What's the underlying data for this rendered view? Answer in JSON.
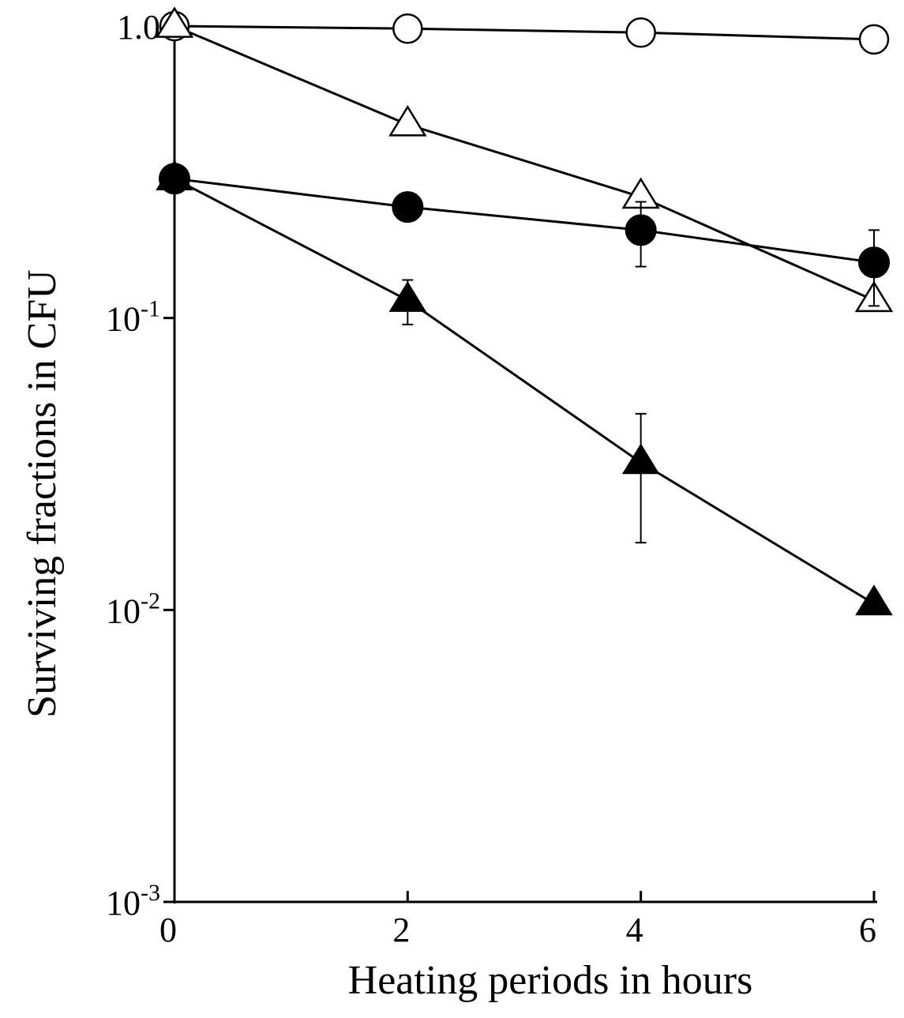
{
  "chart_data": {
    "type": "line",
    "title": "",
    "xlabel": "Heating periods in hours",
    "ylabel": "Surviving fractions in CFU",
    "x": [
      0,
      2,
      4,
      6
    ],
    "xlim": [
      0,
      6
    ],
    "ylim": [
      0.001,
      1.0
    ],
    "yscale": "log",
    "grid": false,
    "x_tick_labels": [
      "0",
      "2",
      "4",
      "6"
    ],
    "y_tick_labels": [
      {
        "value": 1.0,
        "base": "1.0",
        "exp": ""
      },
      {
        "value": 0.1,
        "base": "10",
        "exp": "-1"
      },
      {
        "value": 0.01,
        "base": "10",
        "exp": "-2"
      },
      {
        "value": 0.001,
        "base": "10",
        "exp": "-3"
      }
    ],
    "series": [
      {
        "marker": "open-circle",
        "values": [
          1.0,
          0.98,
          0.95,
          0.9
        ]
      },
      {
        "marker": "open-triangle",
        "values": [
          1.0,
          0.46,
          0.26,
          0.115
        ]
      },
      {
        "marker": "filled-circle",
        "values": [
          0.3,
          0.24,
          0.2,
          0.155
        ],
        "error": [
          0,
          0,
          0.05,
          0.045
        ]
      },
      {
        "marker": "filled-triangle",
        "values": [
          0.3,
          0.115,
          0.032,
          0.0105
        ],
        "error": [
          0,
          0.02,
          0.015,
          0
        ]
      }
    ]
  }
}
